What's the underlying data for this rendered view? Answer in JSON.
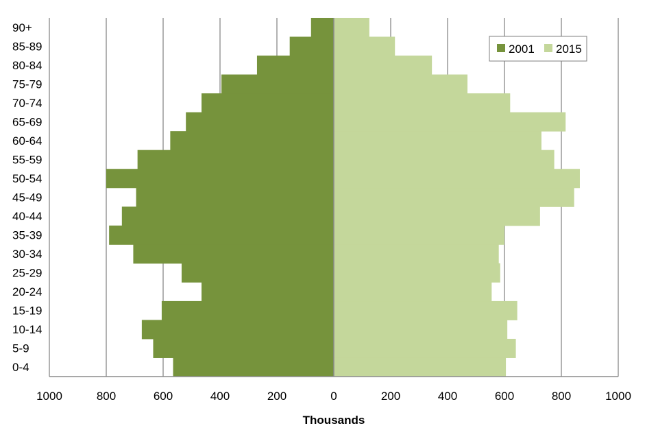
{
  "chart_data": {
    "type": "bar",
    "orientation": "horizontal",
    "layout": "population-pyramid",
    "xlabel": "Thousands",
    "ylabel": "",
    "xlim": [
      -1000,
      1000
    ],
    "x_ticks": [
      -1000,
      -800,
      -600,
      -400,
      -200,
      0,
      200,
      400,
      600,
      800,
      1000
    ],
    "x_tick_labels": [
      "1000",
      "800",
      "600",
      "400",
      "200",
      "0",
      "200",
      "400",
      "600",
      "800",
      "1000"
    ],
    "grid": "vertical",
    "legend": "top-right",
    "categories": [
      "0-4",
      "5-9",
      "10-14",
      "15-19",
      "20-24",
      "25-29",
      "30-34",
      "35-39",
      "40-44",
      "45-49",
      "50-54",
      "55-59",
      "60-64",
      "65-69",
      "70-74",
      "75-79",
      "80-84",
      "85-89",
      "90+"
    ],
    "series": [
      {
        "name": "2001",
        "color": "#76933c",
        "side": "left",
        "values": [
          565,
          635,
          675,
          605,
          465,
          535,
          705,
          790,
          745,
          695,
          800,
          690,
          575,
          520,
          465,
          395,
          270,
          155,
          80
        ]
      },
      {
        "name": "2015",
        "color": "#c4d79b",
        "side": "right",
        "values": [
          605,
          640,
          610,
          645,
          555,
          585,
          580,
          600,
          725,
          845,
          865,
          775,
          730,
          815,
          620,
          470,
          345,
          215,
          125
        ]
      }
    ]
  }
}
